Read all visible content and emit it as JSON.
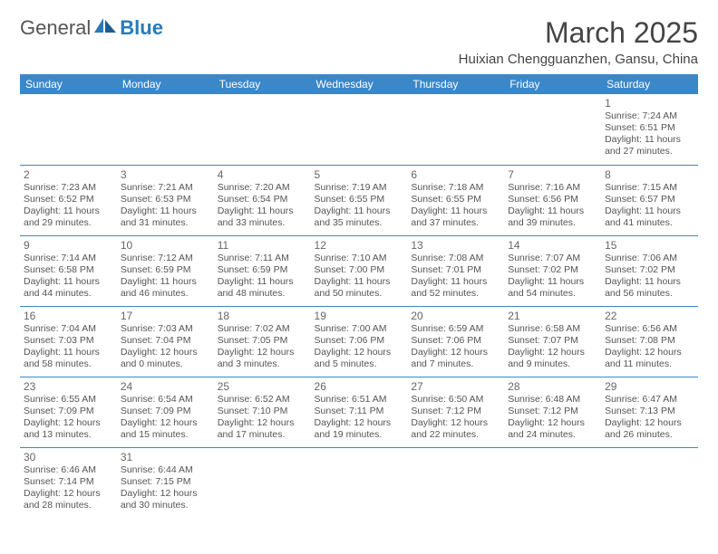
{
  "brand": {
    "part1": "General",
    "part2": "Blue"
  },
  "title": "March 2025",
  "location": "Huixian Chengguanzhen, Gansu, China",
  "colors": {
    "header_bg": "#3b87c8",
    "header_text": "#ffffff",
    "rule": "#3b87c8",
    "text": "#555555",
    "title": "#444444"
  },
  "weekdays": [
    "Sunday",
    "Monday",
    "Tuesday",
    "Wednesday",
    "Thursday",
    "Friday",
    "Saturday"
  ],
  "weeks": [
    [
      null,
      null,
      null,
      null,
      null,
      null,
      {
        "n": "1",
        "sr": "Sunrise: 7:24 AM",
        "ss": "Sunset: 6:51 PM",
        "dl": "Daylight: 11 hours and 27 minutes."
      }
    ],
    [
      {
        "n": "2",
        "sr": "Sunrise: 7:23 AM",
        "ss": "Sunset: 6:52 PM",
        "dl": "Daylight: 11 hours and 29 minutes."
      },
      {
        "n": "3",
        "sr": "Sunrise: 7:21 AM",
        "ss": "Sunset: 6:53 PM",
        "dl": "Daylight: 11 hours and 31 minutes."
      },
      {
        "n": "4",
        "sr": "Sunrise: 7:20 AM",
        "ss": "Sunset: 6:54 PM",
        "dl": "Daylight: 11 hours and 33 minutes."
      },
      {
        "n": "5",
        "sr": "Sunrise: 7:19 AM",
        "ss": "Sunset: 6:55 PM",
        "dl": "Daylight: 11 hours and 35 minutes."
      },
      {
        "n": "6",
        "sr": "Sunrise: 7:18 AM",
        "ss": "Sunset: 6:55 PM",
        "dl": "Daylight: 11 hours and 37 minutes."
      },
      {
        "n": "7",
        "sr": "Sunrise: 7:16 AM",
        "ss": "Sunset: 6:56 PM",
        "dl": "Daylight: 11 hours and 39 minutes."
      },
      {
        "n": "8",
        "sr": "Sunrise: 7:15 AM",
        "ss": "Sunset: 6:57 PM",
        "dl": "Daylight: 11 hours and 41 minutes."
      }
    ],
    [
      {
        "n": "9",
        "sr": "Sunrise: 7:14 AM",
        "ss": "Sunset: 6:58 PM",
        "dl": "Daylight: 11 hours and 44 minutes."
      },
      {
        "n": "10",
        "sr": "Sunrise: 7:12 AM",
        "ss": "Sunset: 6:59 PM",
        "dl": "Daylight: 11 hours and 46 minutes."
      },
      {
        "n": "11",
        "sr": "Sunrise: 7:11 AM",
        "ss": "Sunset: 6:59 PM",
        "dl": "Daylight: 11 hours and 48 minutes."
      },
      {
        "n": "12",
        "sr": "Sunrise: 7:10 AM",
        "ss": "Sunset: 7:00 PM",
        "dl": "Daylight: 11 hours and 50 minutes."
      },
      {
        "n": "13",
        "sr": "Sunrise: 7:08 AM",
        "ss": "Sunset: 7:01 PM",
        "dl": "Daylight: 11 hours and 52 minutes."
      },
      {
        "n": "14",
        "sr": "Sunrise: 7:07 AM",
        "ss": "Sunset: 7:02 PM",
        "dl": "Daylight: 11 hours and 54 minutes."
      },
      {
        "n": "15",
        "sr": "Sunrise: 7:06 AM",
        "ss": "Sunset: 7:02 PM",
        "dl": "Daylight: 11 hours and 56 minutes."
      }
    ],
    [
      {
        "n": "16",
        "sr": "Sunrise: 7:04 AM",
        "ss": "Sunset: 7:03 PM",
        "dl": "Daylight: 11 hours and 58 minutes."
      },
      {
        "n": "17",
        "sr": "Sunrise: 7:03 AM",
        "ss": "Sunset: 7:04 PM",
        "dl": "Daylight: 12 hours and 0 minutes."
      },
      {
        "n": "18",
        "sr": "Sunrise: 7:02 AM",
        "ss": "Sunset: 7:05 PM",
        "dl": "Daylight: 12 hours and 3 minutes."
      },
      {
        "n": "19",
        "sr": "Sunrise: 7:00 AM",
        "ss": "Sunset: 7:06 PM",
        "dl": "Daylight: 12 hours and 5 minutes."
      },
      {
        "n": "20",
        "sr": "Sunrise: 6:59 AM",
        "ss": "Sunset: 7:06 PM",
        "dl": "Daylight: 12 hours and 7 minutes."
      },
      {
        "n": "21",
        "sr": "Sunrise: 6:58 AM",
        "ss": "Sunset: 7:07 PM",
        "dl": "Daylight: 12 hours and 9 minutes."
      },
      {
        "n": "22",
        "sr": "Sunrise: 6:56 AM",
        "ss": "Sunset: 7:08 PM",
        "dl": "Daylight: 12 hours and 11 minutes."
      }
    ],
    [
      {
        "n": "23",
        "sr": "Sunrise: 6:55 AM",
        "ss": "Sunset: 7:09 PM",
        "dl": "Daylight: 12 hours and 13 minutes."
      },
      {
        "n": "24",
        "sr": "Sunrise: 6:54 AM",
        "ss": "Sunset: 7:09 PM",
        "dl": "Daylight: 12 hours and 15 minutes."
      },
      {
        "n": "25",
        "sr": "Sunrise: 6:52 AM",
        "ss": "Sunset: 7:10 PM",
        "dl": "Daylight: 12 hours and 17 minutes."
      },
      {
        "n": "26",
        "sr": "Sunrise: 6:51 AM",
        "ss": "Sunset: 7:11 PM",
        "dl": "Daylight: 12 hours and 19 minutes."
      },
      {
        "n": "27",
        "sr": "Sunrise: 6:50 AM",
        "ss": "Sunset: 7:12 PM",
        "dl": "Daylight: 12 hours and 22 minutes."
      },
      {
        "n": "28",
        "sr": "Sunrise: 6:48 AM",
        "ss": "Sunset: 7:12 PM",
        "dl": "Daylight: 12 hours and 24 minutes."
      },
      {
        "n": "29",
        "sr": "Sunrise: 6:47 AM",
        "ss": "Sunset: 7:13 PM",
        "dl": "Daylight: 12 hours and 26 minutes."
      }
    ],
    [
      {
        "n": "30",
        "sr": "Sunrise: 6:46 AM",
        "ss": "Sunset: 7:14 PM",
        "dl": "Daylight: 12 hours and 28 minutes."
      },
      {
        "n": "31",
        "sr": "Sunrise: 6:44 AM",
        "ss": "Sunset: 7:15 PM",
        "dl": "Daylight: 12 hours and 30 minutes."
      },
      null,
      null,
      null,
      null,
      null
    ]
  ]
}
